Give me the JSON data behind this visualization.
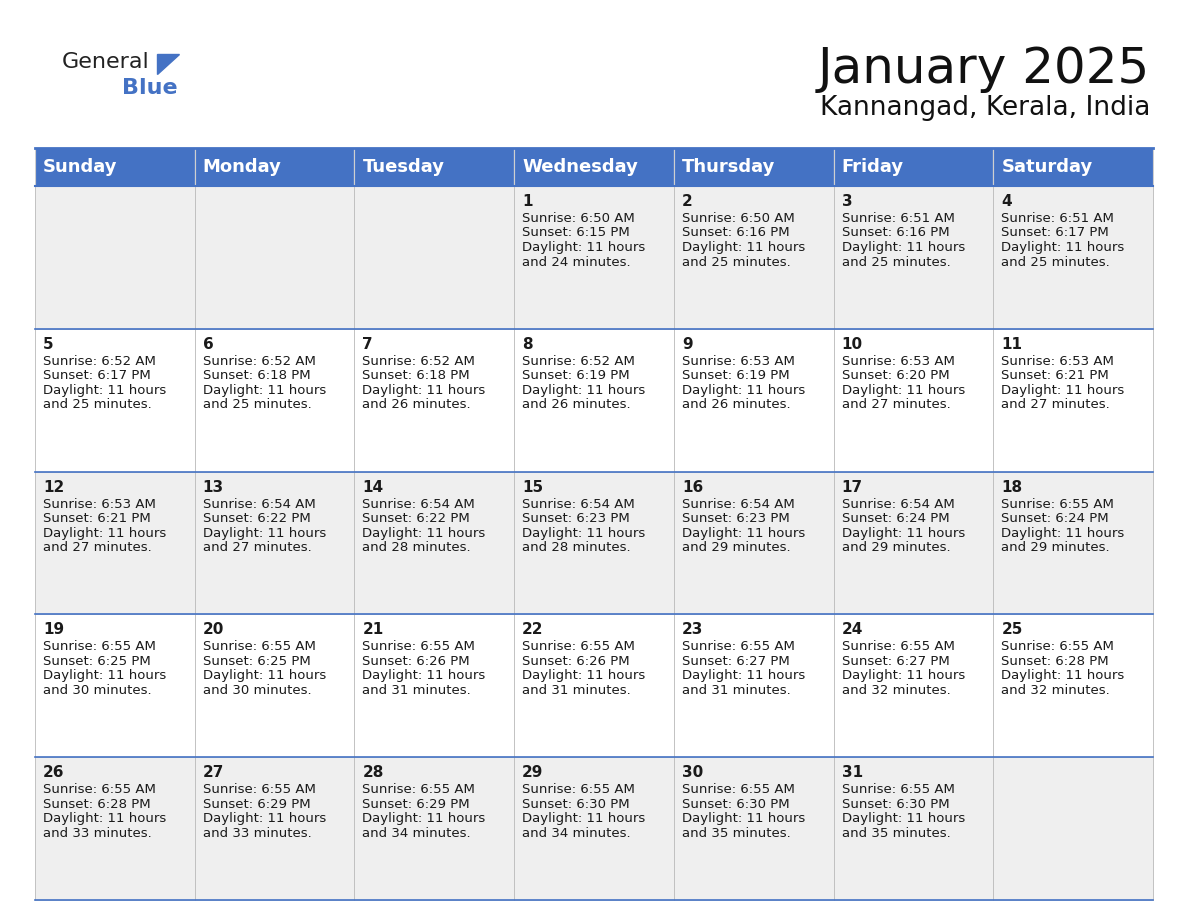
{
  "title": "January 2025",
  "subtitle": "Kannangad, Kerala, India",
  "header_bg_color": "#4472C4",
  "header_text_color": "#FFFFFF",
  "row0_bg": "#EFEFEF",
  "row1_bg": "#FFFFFF",
  "row2_bg": "#EFEFEF",
  "row3_bg": "#FFFFFF",
  "row4_bg": "#EFEFEF",
  "border_color": "#4472C4",
  "text_color": "#1a1a1a",
  "day_headers": [
    "Sunday",
    "Monday",
    "Tuesday",
    "Wednesday",
    "Thursday",
    "Friday",
    "Saturday"
  ],
  "title_fontsize": 36,
  "subtitle_fontsize": 19,
  "header_fontsize": 13,
  "cell_day_fontsize": 11,
  "cell_text_fontsize": 9.5,
  "logo_general_fontsize": 16,
  "logo_blue_fontsize": 16,
  "calendar": [
    [
      {
        "day": "",
        "sunrise": "",
        "sunset": "",
        "daylight": ""
      },
      {
        "day": "",
        "sunrise": "",
        "sunset": "",
        "daylight": ""
      },
      {
        "day": "",
        "sunrise": "",
        "sunset": "",
        "daylight": ""
      },
      {
        "day": "1",
        "sunrise": "6:50 AM",
        "sunset": "6:15 PM",
        "daylight": "11 hours and 24 minutes."
      },
      {
        "day": "2",
        "sunrise": "6:50 AM",
        "sunset": "6:16 PM",
        "daylight": "11 hours and 25 minutes."
      },
      {
        "day": "3",
        "sunrise": "6:51 AM",
        "sunset": "6:16 PM",
        "daylight": "11 hours and 25 minutes."
      },
      {
        "day": "4",
        "sunrise": "6:51 AM",
        "sunset": "6:17 PM",
        "daylight": "11 hours and 25 minutes."
      }
    ],
    [
      {
        "day": "5",
        "sunrise": "6:52 AM",
        "sunset": "6:17 PM",
        "daylight": "11 hours and 25 minutes."
      },
      {
        "day": "6",
        "sunrise": "6:52 AM",
        "sunset": "6:18 PM",
        "daylight": "11 hours and 25 minutes."
      },
      {
        "day": "7",
        "sunrise": "6:52 AM",
        "sunset": "6:18 PM",
        "daylight": "11 hours and 26 minutes."
      },
      {
        "day": "8",
        "sunrise": "6:52 AM",
        "sunset": "6:19 PM",
        "daylight": "11 hours and 26 minutes."
      },
      {
        "day": "9",
        "sunrise": "6:53 AM",
        "sunset": "6:19 PM",
        "daylight": "11 hours and 26 minutes."
      },
      {
        "day": "10",
        "sunrise": "6:53 AM",
        "sunset": "6:20 PM",
        "daylight": "11 hours and 27 minutes."
      },
      {
        "day": "11",
        "sunrise": "6:53 AM",
        "sunset": "6:21 PM",
        "daylight": "11 hours and 27 minutes."
      }
    ],
    [
      {
        "day": "12",
        "sunrise": "6:53 AM",
        "sunset": "6:21 PM",
        "daylight": "11 hours and 27 minutes."
      },
      {
        "day": "13",
        "sunrise": "6:54 AM",
        "sunset": "6:22 PM",
        "daylight": "11 hours and 27 minutes."
      },
      {
        "day": "14",
        "sunrise": "6:54 AM",
        "sunset": "6:22 PM",
        "daylight": "11 hours and 28 minutes."
      },
      {
        "day": "15",
        "sunrise": "6:54 AM",
        "sunset": "6:23 PM",
        "daylight": "11 hours and 28 minutes."
      },
      {
        "day": "16",
        "sunrise": "6:54 AM",
        "sunset": "6:23 PM",
        "daylight": "11 hours and 29 minutes."
      },
      {
        "day": "17",
        "sunrise": "6:54 AM",
        "sunset": "6:24 PM",
        "daylight": "11 hours and 29 minutes."
      },
      {
        "day": "18",
        "sunrise": "6:55 AM",
        "sunset": "6:24 PM",
        "daylight": "11 hours and 29 minutes."
      }
    ],
    [
      {
        "day": "19",
        "sunrise": "6:55 AM",
        "sunset": "6:25 PM",
        "daylight": "11 hours and 30 minutes."
      },
      {
        "day": "20",
        "sunrise": "6:55 AM",
        "sunset": "6:25 PM",
        "daylight": "11 hours and 30 minutes."
      },
      {
        "day": "21",
        "sunrise": "6:55 AM",
        "sunset": "6:26 PM",
        "daylight": "11 hours and 31 minutes."
      },
      {
        "day": "22",
        "sunrise": "6:55 AM",
        "sunset": "6:26 PM",
        "daylight": "11 hours and 31 minutes."
      },
      {
        "day": "23",
        "sunrise": "6:55 AM",
        "sunset": "6:27 PM",
        "daylight": "11 hours and 31 minutes."
      },
      {
        "day": "24",
        "sunrise": "6:55 AM",
        "sunset": "6:27 PM",
        "daylight": "11 hours and 32 minutes."
      },
      {
        "day": "25",
        "sunrise": "6:55 AM",
        "sunset": "6:28 PM",
        "daylight": "11 hours and 32 minutes."
      }
    ],
    [
      {
        "day": "26",
        "sunrise": "6:55 AM",
        "sunset": "6:28 PM",
        "daylight": "11 hours and 33 minutes."
      },
      {
        "day": "27",
        "sunrise": "6:55 AM",
        "sunset": "6:29 PM",
        "daylight": "11 hours and 33 minutes."
      },
      {
        "day": "28",
        "sunrise": "6:55 AM",
        "sunset": "6:29 PM",
        "daylight": "11 hours and 34 minutes."
      },
      {
        "day": "29",
        "sunrise": "6:55 AM",
        "sunset": "6:30 PM",
        "daylight": "11 hours and 34 minutes."
      },
      {
        "day": "30",
        "sunrise": "6:55 AM",
        "sunset": "6:30 PM",
        "daylight": "11 hours and 35 minutes."
      },
      {
        "day": "31",
        "sunrise": "6:55 AM",
        "sunset": "6:30 PM",
        "daylight": "11 hours and 35 minutes."
      },
      {
        "day": "",
        "sunrise": "",
        "sunset": "",
        "daylight": ""
      }
    ]
  ]
}
